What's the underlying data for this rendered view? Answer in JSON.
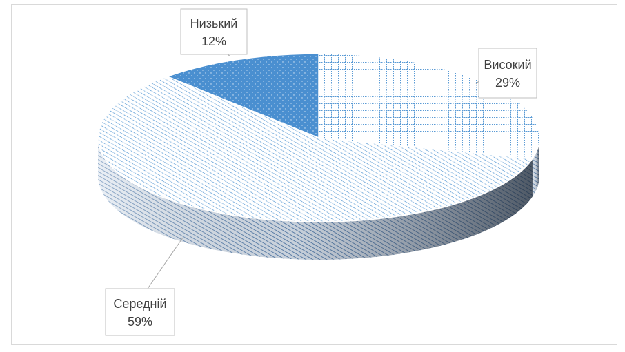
{
  "chart_data": {
    "type": "pie",
    "style": "3d",
    "title": "",
    "slices": [
      {
        "label": "Високий",
        "value": 29,
        "value_label": "29%",
        "pattern": "grid"
      },
      {
        "label": "Середній",
        "value": 59,
        "value_label": "59%",
        "pattern": "diagonal"
      },
      {
        "label": "Низький",
        "value": 12,
        "value_label": "12%",
        "pattern": "dots"
      }
    ],
    "legend": "none",
    "data_labels": "callout",
    "colors": {
      "accent": "#5b9bd5",
      "dark_accent": "#2e75b6",
      "side_shadow": "#4a5566",
      "label_border": "#bfbfbf",
      "text": "#404040"
    }
  }
}
